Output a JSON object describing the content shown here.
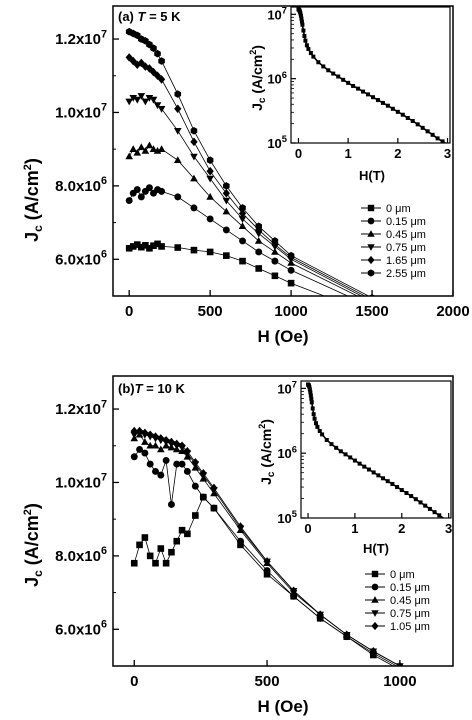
{
  "chart_data": [
    {
      "type": "line",
      "panel_label": "(a)",
      "panel_T": "T = 5 K",
      "xlabel": "H (Oe)",
      "ylabel": "J_c (A/cm^2)",
      "xlim": [
        -100,
        2000
      ],
      "ylim": [
        5000000,
        12900000
      ],
      "xticks": [
        0,
        500,
        1000,
        1500,
        2000
      ],
      "yticks": [
        6000000,
        8000000,
        10000000,
        12000000
      ],
      "ytick_labels": [
        "6.0x10^6",
        "8.0x10^6",
        "1.0x10^7",
        "1.2x10^7"
      ],
      "legend_position": "center-right",
      "series": [
        {
          "name": "0 μm",
          "marker": "square",
          "x": [
            0,
            25,
            50,
            75,
            100,
            125,
            150,
            175,
            200,
            300,
            400,
            500,
            600,
            700,
            800,
            900,
            1000,
            1500,
            2000
          ],
          "y": [
            6300000,
            6350000,
            6400000,
            6330000,
            6380000,
            6300000,
            6370000,
            6420000,
            6350000,
            6320000,
            6250000,
            6200000,
            6100000,
            5950000,
            5750000,
            5550000,
            5350000,
            4500000,
            3700000
          ]
        },
        {
          "name": "0.15 μm",
          "marker": "circle",
          "x": [
            0,
            25,
            50,
            75,
            100,
            125,
            150,
            175,
            200,
            300,
            400,
            500,
            600,
            700,
            800,
            900,
            1000,
            1500,
            2000
          ],
          "y": [
            7600000,
            7800000,
            7900000,
            7700000,
            7850000,
            7950000,
            7800000,
            7900000,
            7850000,
            7700000,
            7400000,
            7100000,
            6800000,
            6500000,
            6200000,
            5950000,
            5700000,
            4700000,
            3800000
          ]
        },
        {
          "name": "0.45 μm",
          "marker": "triangle-up",
          "x": [
            0,
            25,
            50,
            75,
            100,
            125,
            150,
            175,
            200,
            300,
            400,
            500,
            600,
            700,
            800,
            900,
            1000,
            1500,
            2000
          ],
          "y": [
            8800000,
            9000000,
            8900000,
            9050000,
            8950000,
            9100000,
            9000000,
            8950000,
            9000000,
            8700000,
            8200000,
            7700000,
            7300000,
            6900000,
            6500000,
            6200000,
            5900000,
            4800000,
            3900000
          ]
        },
        {
          "name": "0.75 μm",
          "marker": "triangle-down",
          "x": [
            0,
            25,
            50,
            75,
            100,
            125,
            150,
            175,
            200,
            300,
            400,
            500,
            600,
            700,
            800,
            900,
            1000,
            1500,
            2000
          ],
          "y": [
            10300000,
            10400000,
            10350000,
            10450000,
            10300000,
            10400000,
            10350000,
            10200000,
            10100000,
            9500000,
            8800000,
            8200000,
            7600000,
            7100000,
            6700000,
            6350000,
            6000000,
            4850000,
            3900000
          ]
        },
        {
          "name": "1.65 μm",
          "marker": "diamond",
          "x": [
            0,
            25,
            50,
            75,
            100,
            125,
            150,
            175,
            200,
            300,
            400,
            500,
            600,
            700,
            800,
            900,
            1000,
            1500,
            2000
          ],
          "y": [
            11500000,
            11400000,
            11300000,
            11350000,
            11250000,
            11200000,
            11100000,
            11000000,
            10900000,
            10100000,
            9200000,
            8400000,
            7800000,
            7250000,
            6800000,
            6400000,
            6050000,
            4900000,
            3950000
          ]
        },
        {
          "name": "2.55 μm",
          "marker": "hexagon",
          "x": [
            0,
            25,
            50,
            75,
            100,
            125,
            150,
            175,
            200,
            300,
            400,
            500,
            600,
            700,
            800,
            900,
            1000,
            1500,
            2000
          ],
          "y": [
            12200000,
            12150000,
            12100000,
            12000000,
            11950000,
            11850000,
            11750000,
            11600000,
            11400000,
            10500000,
            9500000,
            8700000,
            8000000,
            7400000,
            6900000,
            6500000,
            6100000,
            4950000,
            4000000
          ]
        }
      ],
      "inset": {
        "type": "line",
        "xlabel": "H(T)",
        "ylabel": "J_c (A/cm^2)",
        "xlim": [
          -0.15,
          3.05
        ],
        "ylim": [
          100000,
          13000000
        ],
        "log_y": true,
        "xticks": [
          0,
          1,
          2,
          3
        ],
        "yticks": [
          100000,
          1000000,
          10000000
        ],
        "ytick_labels": [
          "10^5",
          "10^6",
          "10^7"
        ],
        "x": [
          0,
          0.01,
          0.02,
          0.03,
          0.04,
          0.05,
          0.06,
          0.07,
          0.08,
          0.1,
          0.12,
          0.14,
          0.17,
          0.2,
          0.25,
          0.3,
          0.4,
          0.5,
          0.6,
          0.7,
          0.8,
          0.9,
          1,
          1.1,
          1.2,
          1.3,
          1.4,
          1.5,
          1.6,
          1.7,
          1.8,
          1.9,
          2,
          2.1,
          2.2,
          2.3,
          2.4,
          2.5,
          2.6,
          2.7,
          2.8,
          2.9,
          3
        ],
        "y": [
          12000000,
          11800000,
          11500000,
          11000000,
          10300000,
          9500000,
          8600000,
          7700000,
          6900000,
          5600000,
          4600000,
          3900000,
          3300000,
          2900000,
          2500000,
          2200000,
          1800000,
          1550000,
          1350000,
          1200000,
          1080000,
          960000,
          860000,
          770000,
          700000,
          630000,
          570000,
          515000,
          465000,
          420000,
          380000,
          340000,
          305000,
          275000,
          245000,
          220000,
          195000,
          172000,
          152000,
          134000,
          118000,
          106000,
          95000
        ]
      }
    },
    {
      "type": "line",
      "panel_label": "(b)",
      "panel_T": "T = 10 K",
      "xlabel": "H (Oe)",
      "ylabel": "J_c (A/cm^2)",
      "xlim": [
        -80,
        1200
      ],
      "ylim": [
        5000000,
        12900000
      ],
      "xticks": [
        0,
        500,
        1000
      ],
      "yticks": [
        6000000,
        8000000,
        10000000,
        12000000
      ],
      "ytick_labels": [
        "6.0x10^6",
        "8.0x10^6",
        "1.0x10^7",
        "1.2x10^7"
      ],
      "legend_position": "center-right",
      "series": [
        {
          "name": "0 μm",
          "marker": "square",
          "x": [
            0,
            20,
            40,
            60,
            80,
            100,
            120,
            140,
            160,
            180,
            200,
            230,
            260,
            300,
            400,
            500,
            600,
            700,
            800,
            900,
            1000
          ],
          "y": [
            7800000,
            8300000,
            8500000,
            8000000,
            7800000,
            8200000,
            7800000,
            8100000,
            8400000,
            8700000,
            8600000,
            9100000,
            9600000,
            9300000,
            8300000,
            7500000,
            6900000,
            6300000,
            5800000,
            5300000,
            4900000
          ]
        },
        {
          "name": "0.15 μm",
          "marker": "circle",
          "x": [
            0,
            20,
            40,
            60,
            80,
            100,
            120,
            140,
            160,
            180,
            200,
            230,
            260,
            300,
            400,
            500,
            600,
            700,
            800,
            900,
            1000
          ],
          "y": [
            10700000,
            10900000,
            10800000,
            10500000,
            10300000,
            10200000,
            10600000,
            9400000,
            10500000,
            10500000,
            10300000,
            9900000,
            9600000,
            9300000,
            8400000,
            7600000,
            6900000,
            6300000,
            5800000,
            5350000,
            4950000
          ]
        },
        {
          "name": "0.45 μm",
          "marker": "triangle-up",
          "x": [
            0,
            20,
            40,
            60,
            80,
            100,
            120,
            140,
            160,
            180,
            200,
            230,
            260,
            300,
            400,
            500,
            600,
            700,
            800,
            900,
            1000
          ],
          "y": [
            11200000,
            11300000,
            11100000,
            11000000,
            11000000,
            10900000,
            11000000,
            10950000,
            10900000,
            10850000,
            10700000,
            10400000,
            10100000,
            9700000,
            8700000,
            7800000,
            7000000,
            6400000,
            5850000,
            5400000,
            5000000
          ]
        },
        {
          "name": "0.75 μm",
          "marker": "triangle-down",
          "x": [
            0,
            20,
            40,
            60,
            80,
            100,
            120,
            140,
            160,
            180,
            200,
            230,
            260,
            300,
            400,
            500,
            600,
            700,
            800,
            900,
            1000
          ],
          "y": [
            11300000,
            11350000,
            11300000,
            11250000,
            11200000,
            11150000,
            11100000,
            11050000,
            11000000,
            10950000,
            10800000,
            10500000,
            10200000,
            9800000,
            8750000,
            7850000,
            7050000,
            6400000,
            5850000,
            5400000,
            5000000
          ]
        },
        {
          "name": "1.05 μm",
          "marker": "diamond",
          "x": [
            0,
            20,
            40,
            60,
            80,
            100,
            120,
            140,
            160,
            180,
            200,
            230,
            260,
            300,
            400,
            500,
            600,
            700,
            800,
            900,
            1000
          ],
          "y": [
            11400000,
            11400000,
            11350000,
            11300000,
            11250000,
            11200000,
            11150000,
            11100000,
            11050000,
            11000000,
            10850000,
            10550000,
            10250000,
            9850000,
            8800000,
            7850000,
            7050000,
            6400000,
            5850000,
            5400000,
            5000000
          ]
        }
      ],
      "inset": {
        "type": "line",
        "xlabel": "H(T)",
        "ylabel": "J_c (A/cm^2)",
        "xlim": [
          -0.15,
          3.05
        ],
        "ylim": [
          100000,
          13000000
        ],
        "log_y": true,
        "xticks": [
          0,
          1,
          2,
          3
        ],
        "yticks": [
          100000,
          1000000,
          10000000
        ],
        "ytick_labels": [
          "10^5",
          "10^6",
          "10^7"
        ],
        "x": [
          0,
          0.01,
          0.02,
          0.03,
          0.04,
          0.05,
          0.06,
          0.07,
          0.08,
          0.1,
          0.12,
          0.14,
          0.17,
          0.2,
          0.25,
          0.3,
          0.4,
          0.5,
          0.6,
          0.7,
          0.8,
          0.9,
          1,
          1.1,
          1.2,
          1.3,
          1.4,
          1.5,
          1.6,
          1.7,
          1.8,
          1.9,
          2,
          2.1,
          2.2,
          2.3,
          2.4,
          2.5,
          2.6,
          2.7,
          2.8,
          2.9,
          3
        ],
        "y": [
          11500000,
          11300000,
          11000000,
          10400000,
          9600000,
          8700000,
          7800000,
          6900000,
          6100000,
          4900000,
          4000000,
          3400000,
          2900000,
          2550000,
          2200000,
          1950000,
          1600000,
          1380000,
          1210000,
          1070000,
          960000,
          860000,
          770000,
          690000,
          620000,
          560000,
          505000,
          455000,
          410000,
          370000,
          335000,
          300000,
          270000,
          243000,
          218000,
          195000,
          174000,
          155000,
          138000,
          123000,
          110000,
          98000,
          88000
        ]
      }
    }
  ]
}
